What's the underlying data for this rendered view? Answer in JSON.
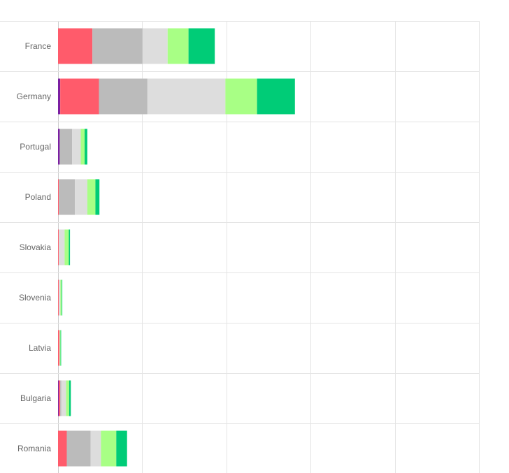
{
  "chart_data": {
    "type": "bar",
    "orientation": "horizontal",
    "stacked": true,
    "categories": [
      "France",
      "Germany",
      "Portugal",
      "Poland",
      "Slovakia",
      "Slovenia",
      "Latvia",
      "Bulgaria",
      "Romania"
    ],
    "series": [
      {
        "color": "#7b1fa2",
        "values": [
          0,
          1.3,
          1.0,
          0,
          0,
          0,
          0,
          0.5,
          0
        ]
      },
      {
        "color": "#ff5b6b",
        "values": [
          20.4,
          23.0,
          0,
          0.5,
          0.4,
          0.4,
          0.8,
          0.8,
          5.2
        ]
      },
      {
        "color": "#bbbbbb",
        "values": [
          29.8,
          28.8,
          7.4,
          9.5,
          0,
          0,
          0,
          0.7,
          14.1
        ]
      },
      {
        "color": "#dddddd",
        "values": [
          14.9,
          46.3,
          5.1,
          7.4,
          3.5,
          1.0,
          0.3,
          2.8,
          6.2
        ]
      },
      {
        "color": "#a8ff85",
        "values": [
          12.4,
          18.8,
          2.3,
          4.8,
          2.5,
          0.8,
          0.4,
          1.8,
          9.1
        ]
      },
      {
        "color": "#00cc77",
        "values": [
          15.6,
          22.5,
          1.6,
          2.4,
          0.7,
          0.3,
          0.2,
          1.0,
          6.4
        ]
      }
    ],
    "xlim": [
      0,
      250
    ],
    "grid": true,
    "legend": "none"
  }
}
